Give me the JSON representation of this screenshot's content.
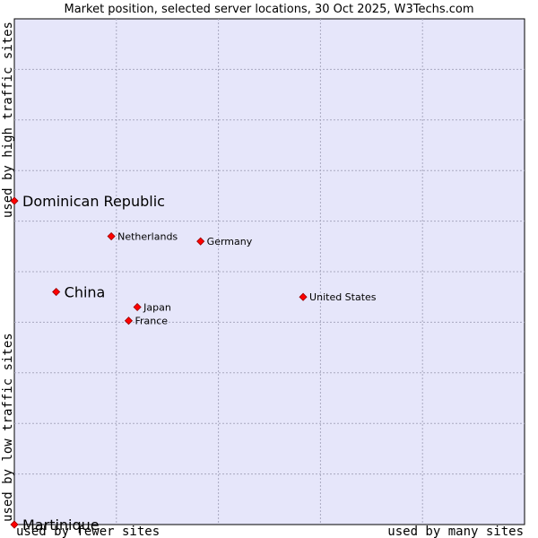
{
  "chart_data": {
    "type": "scatter",
    "title": "Market position, selected server locations, 30 Oct 2025, W3Techs.com",
    "xlabel_low": "used by fewer sites",
    "xlabel_high": "used by many sites",
    "ylabel_low": "used by low traffic sites",
    "ylabel_high": "used by high traffic sites",
    "xlim": [
      0,
      100
    ],
    "ylim": [
      0,
      100
    ],
    "grid": true,
    "points": [
      {
        "name": "Dominican Republic",
        "x": 0.0,
        "y": 64.0,
        "emphasis": true
      },
      {
        "name": "China",
        "x": 8.2,
        "y": 46.0,
        "emphasis": true
      },
      {
        "name": "Martinique",
        "x": 0.0,
        "y": 0.0,
        "emphasis": true
      },
      {
        "name": "Netherlands",
        "x": 19.0,
        "y": 57.0,
        "emphasis": false
      },
      {
        "name": "Germany",
        "x": 36.5,
        "y": 56.0,
        "emphasis": false
      },
      {
        "name": "Japan",
        "x": 24.1,
        "y": 43.0,
        "emphasis": false
      },
      {
        "name": "France",
        "x": 22.4,
        "y": 40.3,
        "emphasis": false
      },
      {
        "name": "United States",
        "x": 56.6,
        "y": 45.0,
        "emphasis": false
      }
    ]
  }
}
